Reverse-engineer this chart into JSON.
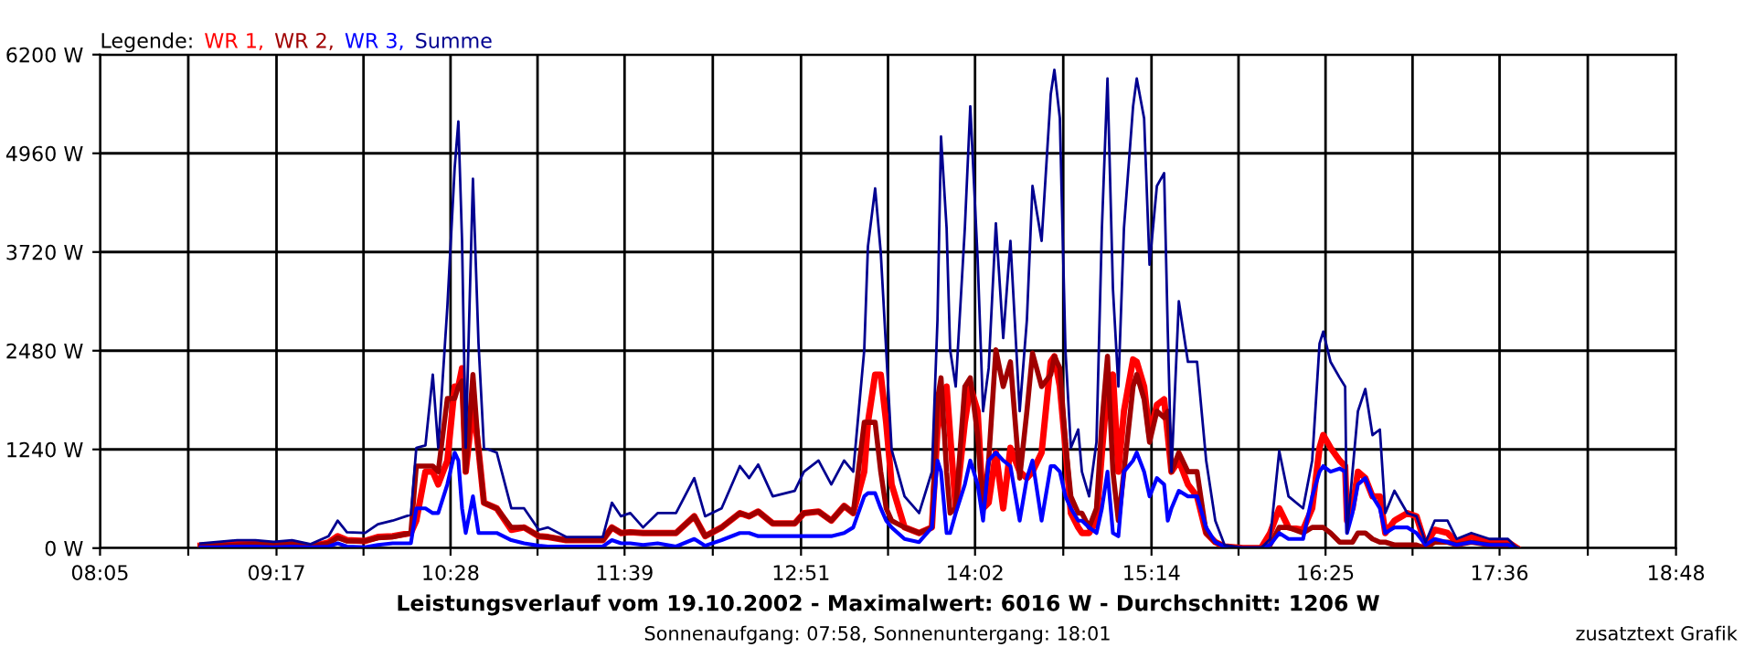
{
  "chart_data": {
    "type": "line",
    "xlabel": "Leistungsverlauf vom 19.10.2002 - Maximalwert: 6016 W - Durchschnitt: 1206 W",
    "legend_title": "Legende:",
    "annotations": [
      "Sonnenaufgang: 07:58, Sonnenuntergang: 18:01",
      "zusatztext Grafik"
    ],
    "x": [
      8.767,
      8.891,
      9.016,
      9.14,
      9.264,
      9.389,
      9.513,
      9.637,
      9.699,
      9.762,
      9.886,
      9.973,
      10.073,
      10.197,
      10.234,
      10.296,
      10.346,
      10.383,
      10.445,
      10.495,
      10.52,
      10.545,
      10.57,
      10.619,
      10.657,
      10.694,
      10.781,
      10.88,
      10.967,
      11.067,
      11.129,
      11.253,
      11.502,
      11.564,
      11.626,
      11.689,
      11.776,
      11.875,
      12.0,
      12.124,
      12.198,
      12.31,
      12.434,
      12.497,
      12.559,
      12.658,
      12.807,
      12.87,
      12.969,
      13.056,
      13.143,
      13.205,
      13.28,
      13.305,
      13.354,
      13.392,
      13.429,
      13.466,
      13.554,
      13.653,
      13.74,
      13.778,
      13.802,
      13.84,
      13.864,
      13.902,
      13.964,
      14.001,
      14.051,
      14.088,
      14.126,
      14.175,
      14.225,
      14.274,
      14.337,
      14.386,
      14.424,
      14.486,
      14.548,
      14.573,
      14.61,
      14.648,
      14.685,
      14.735,
      14.76,
      14.809,
      14.859,
      14.896,
      14.934,
      14.971,
      15.008,
      15.046,
      15.108,
      15.133,
      15.183,
      15.22,
      15.27,
      15.319,
      15.344,
      15.369,
      15.419,
      15.481,
      15.543,
      15.605,
      15.667,
      15.73,
      15.854,
      15.978,
      16.04,
      16.102,
      16.165,
      16.264,
      16.326,
      16.376,
      16.401,
      16.451,
      16.513,
      16.55,
      16.563,
      16.6,
      16.637,
      16.687,
      16.736,
      16.786,
      16.823,
      16.885,
      16.973,
      17.035,
      17.097,
      17.159,
      17.246,
      17.308,
      17.408,
      17.532,
      17.657,
      17.719
    ],
    "series": [
      {
        "name": "WR 1,",
        "color": "#ff0000",
        "values": [
          30,
          40,
          50,
          50,
          40,
          50,
          20,
          70,
          150,
          100,
          90,
          140,
          150,
          190,
          345,
          960,
          960,
          800,
          1100,
          2030,
          2030,
          2260,
          960,
          1800,
          1240,
          570,
          500,
          230,
          260,
          150,
          140,
          100,
          100,
          260,
          190,
          200,
          190,
          190,
          190,
          400,
          150,
          260,
          440,
          400,
          460,
          310,
          310,
          440,
          460,
          345,
          530,
          440,
          960,
          1580,
          2180,
          2180,
          1580,
          800,
          260,
          190,
          260,
          1490,
          1720,
          2030,
          1420,
          500,
          1580,
          2030,
          1720,
          500,
          570,
          1200,
          500,
          1260,
          960,
          880,
          960,
          1200,
          2340,
          2410,
          2030,
          1260,
          440,
          260,
          190,
          190,
          345,
          1200,
          2030,
          2180,
          960,
          1720,
          2370,
          2340,
          2030,
          1420,
          1800,
          1870,
          1420,
          960,
          1100,
          800,
          650,
          190,
          75,
          20,
          0,
          0,
          190,
          500,
          260,
          230,
          500,
          1260,
          1420,
          1260,
          1100,
          1030,
          345,
          500,
          960,
          880,
          650,
          650,
          190,
          345,
          440,
          400,
          40,
          230,
          190,
          75,
          150,
          75,
          75,
          0
        ]
      },
      {
        "name": "WR 2,",
        "color": "#a00000",
        "values": [
          20,
          30,
          40,
          50,
          40,
          50,
          20,
          60,
          130,
          90,
          90,
          130,
          140,
          190,
          1030,
          1030,
          1030,
          960,
          1880,
          1880,
          2030,
          2100,
          960,
          2180,
          1240,
          570,
          500,
          260,
          260,
          150,
          140,
          100,
          100,
          260,
          190,
          200,
          190,
          190,
          190,
          400,
          150,
          260,
          440,
          400,
          460,
          310,
          310,
          440,
          460,
          345,
          530,
          440,
          1580,
          1580,
          1580,
          960,
          500,
          345,
          260,
          190,
          260,
          1870,
          2140,
          960,
          440,
          500,
          2030,
          2140,
          1420,
          500,
          1100,
          2490,
          2030,
          2340,
          880,
          1720,
          2450,
          2030,
          2180,
          2410,
          2260,
          1330,
          650,
          440,
          440,
          260,
          500,
          1580,
          2410,
          960,
          345,
          960,
          2030,
          2180,
          1870,
          1330,
          1720,
          1640,
          1720,
          960,
          1200,
          960,
          960,
          190,
          75,
          20,
          0,
          0,
          40,
          260,
          260,
          190,
          260,
          260,
          260,
          190,
          75,
          75,
          75,
          75,
          190,
          190,
          115,
          75,
          75,
          40,
          40,
          40,
          0,
          75,
          75,
          40,
          75,
          40,
          40,
          0
        ]
      },
      {
        "name": "WR 3,",
        "color": "#0000ff",
        "values": [
          10,
          10,
          20,
          20,
          10,
          20,
          10,
          20,
          60,
          20,
          10,
          40,
          60,
          60,
          500,
          500,
          440,
          440,
          800,
          1200,
          1100,
          500,
          190,
          650,
          190,
          190,
          190,
          100,
          60,
          30,
          20,
          20,
          20,
          100,
          60,
          60,
          40,
          60,
          20,
          115,
          30,
          100,
          190,
          190,
          150,
          150,
          150,
          150,
          150,
          150,
          190,
          260,
          650,
          690,
          690,
          500,
          345,
          260,
          115,
          75,
          260,
          1100,
          960,
          190,
          190,
          440,
          800,
          1100,
          800,
          345,
          1100,
          1200,
          1100,
          1030,
          345,
          880,
          1100,
          345,
          1030,
          1030,
          960,
          650,
          500,
          345,
          345,
          260,
          190,
          500,
          960,
          190,
          150,
          960,
          1100,
          1200,
          960,
          650,
          880,
          800,
          345,
          500,
          720,
          650,
          650,
          260,
          75,
          20,
          0,
          0,
          40,
          190,
          115,
          115,
          650,
          960,
          1030,
          960,
          1000,
          960,
          190,
          440,
          800,
          880,
          650,
          500,
          190,
          260,
          260,
          190,
          40,
          115,
          75,
          40,
          75,
          40,
          40,
          0
        ]
      },
      {
        "name": "Summe",
        "color": "#000090",
        "values": [
          60,
          80,
          100,
          100,
          80,
          100,
          50,
          150,
          345,
          200,
          190,
          300,
          345,
          420,
          1260,
          1290,
          2180,
          1260,
          3030,
          4780,
          5360,
          3860,
          1260,
          4640,
          2570,
          1260,
          1200,
          500,
          500,
          230,
          260,
          140,
          140,
          570,
          400,
          440,
          260,
          440,
          440,
          880,
          400,
          500,
          1030,
          880,
          1050,
          650,
          720,
          960,
          1100,
          800,
          1100,
          960,
          2490,
          3790,
          4520,
          3720,
          2490,
          1240,
          650,
          440,
          960,
          2870,
          5170,
          4020,
          2490,
          2030,
          4020,
          5550,
          3630,
          1720,
          2260,
          4080,
          2640,
          3860,
          1720,
          2870,
          4550,
          3860,
          5700,
          6010,
          5400,
          2490,
          1260,
          1490,
          960,
          650,
          1330,
          4020,
          5900,
          3260,
          2030,
          4020,
          5550,
          5900,
          5400,
          3560,
          4550,
          4710,
          2720,
          960,
          3100,
          2340,
          2340,
          1100,
          345,
          40,
          0,
          0,
          115,
          1220,
          650,
          500,
          1100,
          2570,
          2720,
          2340,
          2140,
          2030,
          190,
          960,
          1720,
          2000,
          1420,
          1490,
          440,
          720,
          440,
          400,
          75,
          345,
          345,
          115,
          190,
          115,
          115,
          0
        ]
      }
    ],
    "xlim": [
      8.0833,
      18.8
    ],
    "xticks": [
      {
        "value": 8.0833,
        "label": "08:05"
      },
      {
        "value": 8.6833,
        "label": null
      },
      {
        "value": 9.2833,
        "label": "09:17"
      },
      {
        "value": 9.875,
        "label": null
      },
      {
        "value": 10.4667,
        "label": "10:28"
      },
      {
        "value": 11.0583,
        "label": null
      },
      {
        "value": 11.65,
        "label": "11:39"
      },
      {
        "value": 12.25,
        "label": null
      },
      {
        "value": 12.85,
        "label": "12:51"
      },
      {
        "value": 13.4417,
        "label": null
      },
      {
        "value": 14.0333,
        "label": "14:02"
      },
      {
        "value": 14.6333,
        "label": null
      },
      {
        "value": 15.2333,
        "label": "15:14"
      },
      {
        "value": 15.825,
        "label": null
      },
      {
        "value": 16.4167,
        "label": "16:25"
      },
      {
        "value": 17.0083,
        "label": null
      },
      {
        "value": 17.6,
        "label": "17:36"
      },
      {
        "value": 18.2,
        "label": null
      },
      {
        "value": 18.8,
        "label": "18:48"
      }
    ],
    "ylim": [
      0,
      6200
    ],
    "yticks": [
      {
        "value": 0,
        "label": "0 W"
      },
      {
        "value": 1240,
        "label": "1240 W"
      },
      {
        "value": 2480,
        "label": "2480 W"
      },
      {
        "value": 3720,
        "label": "3720 W"
      },
      {
        "value": 4960,
        "label": "4960 W"
      },
      {
        "value": 6200,
        "label": "6200 W"
      }
    ],
    "grid": true,
    "legend": "top left",
    "marker": "none",
    "line_style": "solid"
  }
}
